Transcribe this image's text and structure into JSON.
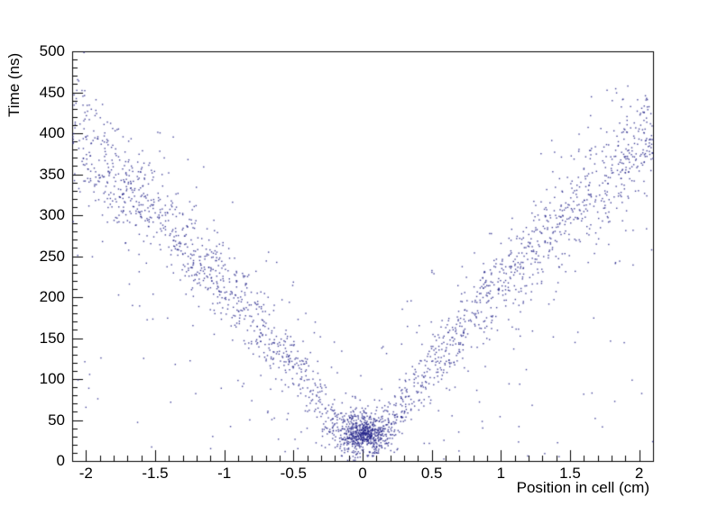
{
  "figure": {
    "background": "#ffffff",
    "frame_color": "#000000",
    "text_color": "#000000"
  },
  "chart_data": {
    "type": "scatter",
    "title": "",
    "xlabel": "Position in cell (cm)",
    "ylabel": "Time (ns)",
    "xlim": [
      -2.1,
      2.1
    ],
    "ylim": [
      0,
      500
    ],
    "x_tick_values": [
      -2,
      -1.5,
      -1,
      -0.5,
      0,
      0.5,
      1,
      1.5,
      2
    ],
    "x_tick_labels": [
      "-2",
      "-1.5",
      "-1",
      "-0.5",
      "0",
      "0.5",
      "1",
      "1.5",
      "2"
    ],
    "y_tick_values": [
      0,
      50,
      100,
      150,
      200,
      250,
      300,
      350,
      400,
      450,
      500
    ],
    "y_tick_labels": [
      "0",
      "50",
      "100",
      "150",
      "200",
      "250",
      "300",
      "350",
      "400",
      "450",
      "500"
    ],
    "x_minor_step": 0.1,
    "y_minor_step": 10,
    "grid": false,
    "legend": "none",
    "marker": {
      "color": "#23238a",
      "size": 1.4,
      "alpha": 0.85
    },
    "axis": {
      "line_color": "#000000",
      "major_tick_len": 12,
      "minor_tick_len": 6
    },
    "shape_description": "V-shaped drift-time distribution: time rises roughly linearly with |position|, with a dense cluster of hits near position 0 at times 20-60 ns and sparse background hits beneath the bands",
    "generator": {
      "seed": 20240217,
      "v_band": {
        "n": 1900,
        "slope": 240,
        "quad": -25,
        "sigma_base": 12,
        "sigma_slope": 12,
        "abs_x_min": 0.03,
        "abs_x_max": 2.1
      },
      "clusters": [
        {
          "n": 380,
          "x_mean": 0.0,
          "x_sigma": 0.1,
          "t_mean": 38,
          "t_sigma": 14
        },
        {
          "n": 170,
          "x_mean": 0.02,
          "x_sigma": 0.055,
          "t_mean": 33,
          "t_sigma": 8
        }
      ],
      "background": {
        "n": 260,
        "t_extra": 120,
        "t_min": 2
      }
    }
  }
}
